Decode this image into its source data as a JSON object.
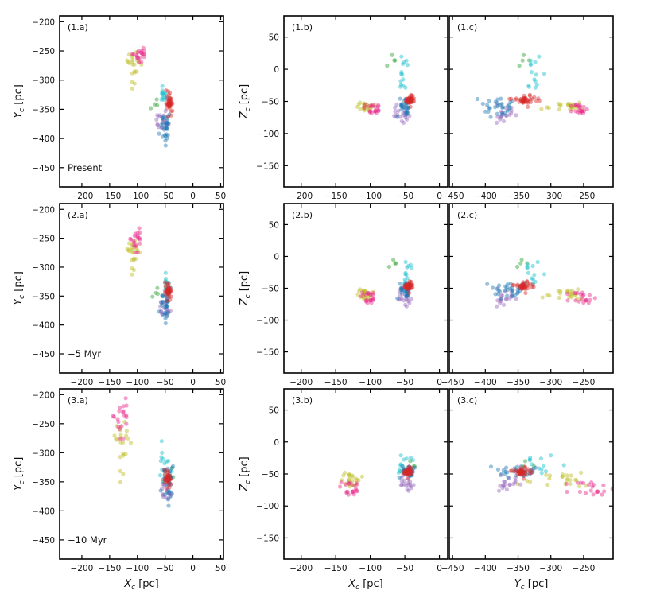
{
  "colors": {
    "green": "#2ca02c",
    "cyan": "#17becf",
    "olive": "#bcbd22",
    "magenta": "#e7298a",
    "purple": "#9467bd",
    "blue": "#1f77b4",
    "red": "#d62728"
  },
  "chart_data": {
    "type": "scatter",
    "rows": [
      {
        "name": "present",
        "epoch_label": "Present"
      },
      {
        "name": "5myr",
        "epoch_label": "−5 Myr"
      },
      {
        "name": "10myr",
        "epoch_label": "−10 Myr"
      }
    ],
    "columns": [
      {
        "name": "xy",
        "x_axis": {
          "label": "X",
          "sub": "c",
          "unit": " [pc]",
          "range": [
            -240,
            55
          ],
          "ticks": [
            -200,
            -150,
            -100,
            -50,
            0,
            50
          ]
        },
        "y_axis": {
          "label": "Y",
          "sub": "c",
          "unit": " [pc]",
          "range": [
            -483,
            -190
          ],
          "ticks": [
            -200,
            -250,
            -300,
            -350,
            -400,
            -450
          ]
        }
      },
      {
        "name": "xz",
        "x_axis": {
          "label": "X",
          "sub": "c",
          "unit": " [pc]",
          "range": [
            -225,
            12
          ],
          "ticks": [
            -200,
            -150,
            -100,
            -50,
            0
          ]
        },
        "y_axis": {
          "label": "Z",
          "sub": "c",
          "unit": " [pc]",
          "range": [
            -183,
            83
          ],
          "ticks": [
            50,
            0,
            -50,
            -100,
            -150
          ]
        }
      },
      {
        "name": "yz",
        "x_axis": {
          "label": "Y",
          "sub": "c",
          "unit": " [pc]",
          "range": [
            -455,
            -205
          ],
          "ticks": [
            -450,
            -400,
            -350,
            -300,
            -250
          ]
        },
        "y_axis": {
          "label": "Z",
          "sub": "c",
          "unit": " [pc]",
          "range": [
            -183,
            83
          ],
          "ticks": [
            50,
            0,
            -50,
            -100,
            -150
          ]
        }
      }
    ],
    "panel_labels": [
      [
        "(1.a)",
        "(1.b)",
        "(1.c)"
      ],
      [
        "(2.a)",
        "(2.b)",
        "(2.c)"
      ],
      [
        "(3.a)",
        "(3.b)",
        "(3.c)"
      ]
    ],
    "groups": [
      {
        "name": "olive-group",
        "color": "olive",
        "n": 22,
        "center": [
          [
            -107,
            -275,
            -57
          ],
          [
            -108,
            -276,
            -58
          ],
          [
            -128,
            -285,
            -57
          ]
        ],
        "spread": [
          [
            7,
            15,
            4
          ],
          [
            6,
            14,
            5
          ],
          [
            8,
            25,
            7
          ]
        ]
      },
      {
        "name": "magenta-group",
        "color": "magenta",
        "n": 20,
        "center": [
          [
            -97,
            -255,
            -62
          ],
          [
            -103,
            -250,
            -65
          ],
          [
            -130,
            -235,
            -73
          ]
        ],
        "spread": [
          [
            6,
            7,
            4
          ],
          [
            5,
            12,
            5
          ],
          [
            7,
            20,
            6
          ]
        ]
      },
      {
        "name": "green-group",
        "color": "green",
        "n": 4,
        "center": [
          [
            -70,
            -342,
            12
          ],
          [
            -68,
            -345,
            -12
          ],
          [
            -45,
            -340,
            -40
          ]
        ],
        "spread": [
          [
            6,
            5,
            6
          ],
          [
            5,
            5,
            4
          ],
          [
            10,
            8,
            6
          ]
        ]
      },
      {
        "name": "cyan-group",
        "color": "cyan",
        "n": 14,
        "center": [
          [
            -52,
            -330,
            -10
          ],
          [
            -46,
            -335,
            -30
          ],
          [
            -50,
            -330,
            -38
          ]
        ],
        "spread": [
          [
            5,
            8,
            14
          ],
          [
            5,
            10,
            10
          ],
          [
            10,
            20,
            8
          ]
        ]
      },
      {
        "name": "purple-group",
        "color": "purple",
        "n": 18,
        "center": [
          [
            -55,
            -370,
            -70
          ],
          [
            -50,
            -370,
            -65
          ],
          [
            -47,
            -365,
            -65
          ]
        ],
        "spread": [
          [
            6,
            9,
            7
          ],
          [
            5,
            9,
            7
          ],
          [
            5,
            10,
            6
          ]
        ]
      },
      {
        "name": "blue-group",
        "color": "blue",
        "n": 30,
        "center": [
          [
            -50,
            -380,
            -57
          ],
          [
            -50,
            -365,
            -52
          ],
          [
            -45,
            -350,
            -45
          ]
        ],
        "spread": [
          [
            5,
            14,
            10
          ],
          [
            5,
            14,
            8
          ],
          [
            6,
            18,
            6
          ]
        ]
      },
      {
        "name": "red-group",
        "color": "red",
        "n": 38,
        "center": [
          [
            -42,
            -340,
            -48
          ],
          [
            -44,
            -342,
            -47
          ],
          [
            -45,
            -345,
            -47
          ]
        ],
        "spread": [
          [
            3,
            10,
            3
          ],
          [
            3,
            7,
            3
          ],
          [
            3,
            7,
            3
          ]
        ]
      }
    ]
  }
}
